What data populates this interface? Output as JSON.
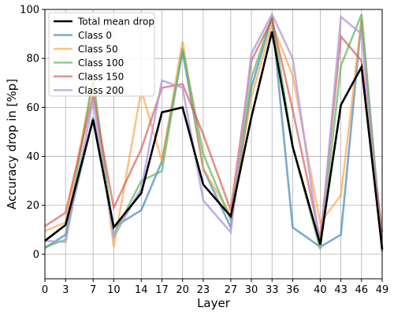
{
  "chart_data": {
    "type": "line",
    "title": "",
    "xlabel": "Layer",
    "ylabel": "Accuracy drop in [%p]",
    "xlim": [
      0,
      49
    ],
    "ylim": [
      -10,
      100
    ],
    "xticks": [
      0,
      3,
      7,
      10,
      14,
      17,
      20,
      23,
      27,
      30,
      33,
      36,
      40,
      43,
      46,
      49
    ],
    "yticks": [
      0,
      20,
      40,
      60,
      80,
      100
    ],
    "grid": true,
    "legend_position": "top-left",
    "x": [
      0,
      3,
      7,
      10,
      14,
      17,
      20,
      23,
      27,
      30,
      33,
      36,
      40,
      43,
      46,
      49
    ],
    "series": [
      {
        "name": "Total mean drop",
        "color": "#000000",
        "width": 2.6,
        "opacity": 1.0,
        "values": [
          5.5,
          12,
          55,
          11,
          25,
          58,
          60,
          28.5,
          15.5,
          56,
          91,
          44,
          4,
          61,
          76.5,
          2
        ]
      },
      {
        "name": "Class 0",
        "color": "#4f8fbf",
        "width": 2.6,
        "opacity": 0.75,
        "values": [
          2.5,
          8,
          56,
          11,
          18,
          38,
          83,
          35,
          11,
          68,
          97,
          11,
          3,
          8,
          96,
          1
        ]
      },
      {
        "name": "Class 50",
        "color": "#ff9933",
        "width": 2.6,
        "opacity": 0.6,
        "values": [
          9.5,
          13,
          71,
          3,
          67,
          38,
          87,
          35,
          16,
          64,
          94,
          73,
          13,
          24,
          96,
          2
        ]
      },
      {
        "name": "Class 100",
        "color": "#5cb85c",
        "width": 2.6,
        "opacity": 0.7,
        "values": [
          3,
          6,
          72,
          8,
          30,
          34,
          84,
          41,
          14,
          72,
          97,
          44,
          2,
          77,
          98,
          3
        ]
      },
      {
        "name": "Class 150",
        "color": "#d9534f",
        "width": 2.6,
        "opacity": 0.65,
        "values": [
          11.5,
          17,
          65,
          19,
          43,
          68,
          69.5,
          49,
          18,
          79,
          96,
          59,
          6,
          89,
          79,
          9
        ]
      },
      {
        "name": "Class 200",
        "color": "#b39ddb",
        "width": 2.6,
        "opacity": 0.8,
        "values": [
          5.5,
          5,
          63,
          7,
          27,
          71,
          68,
          22,
          9,
          82,
          98,
          80,
          3,
          97,
          90,
          2
        ]
      }
    ]
  }
}
